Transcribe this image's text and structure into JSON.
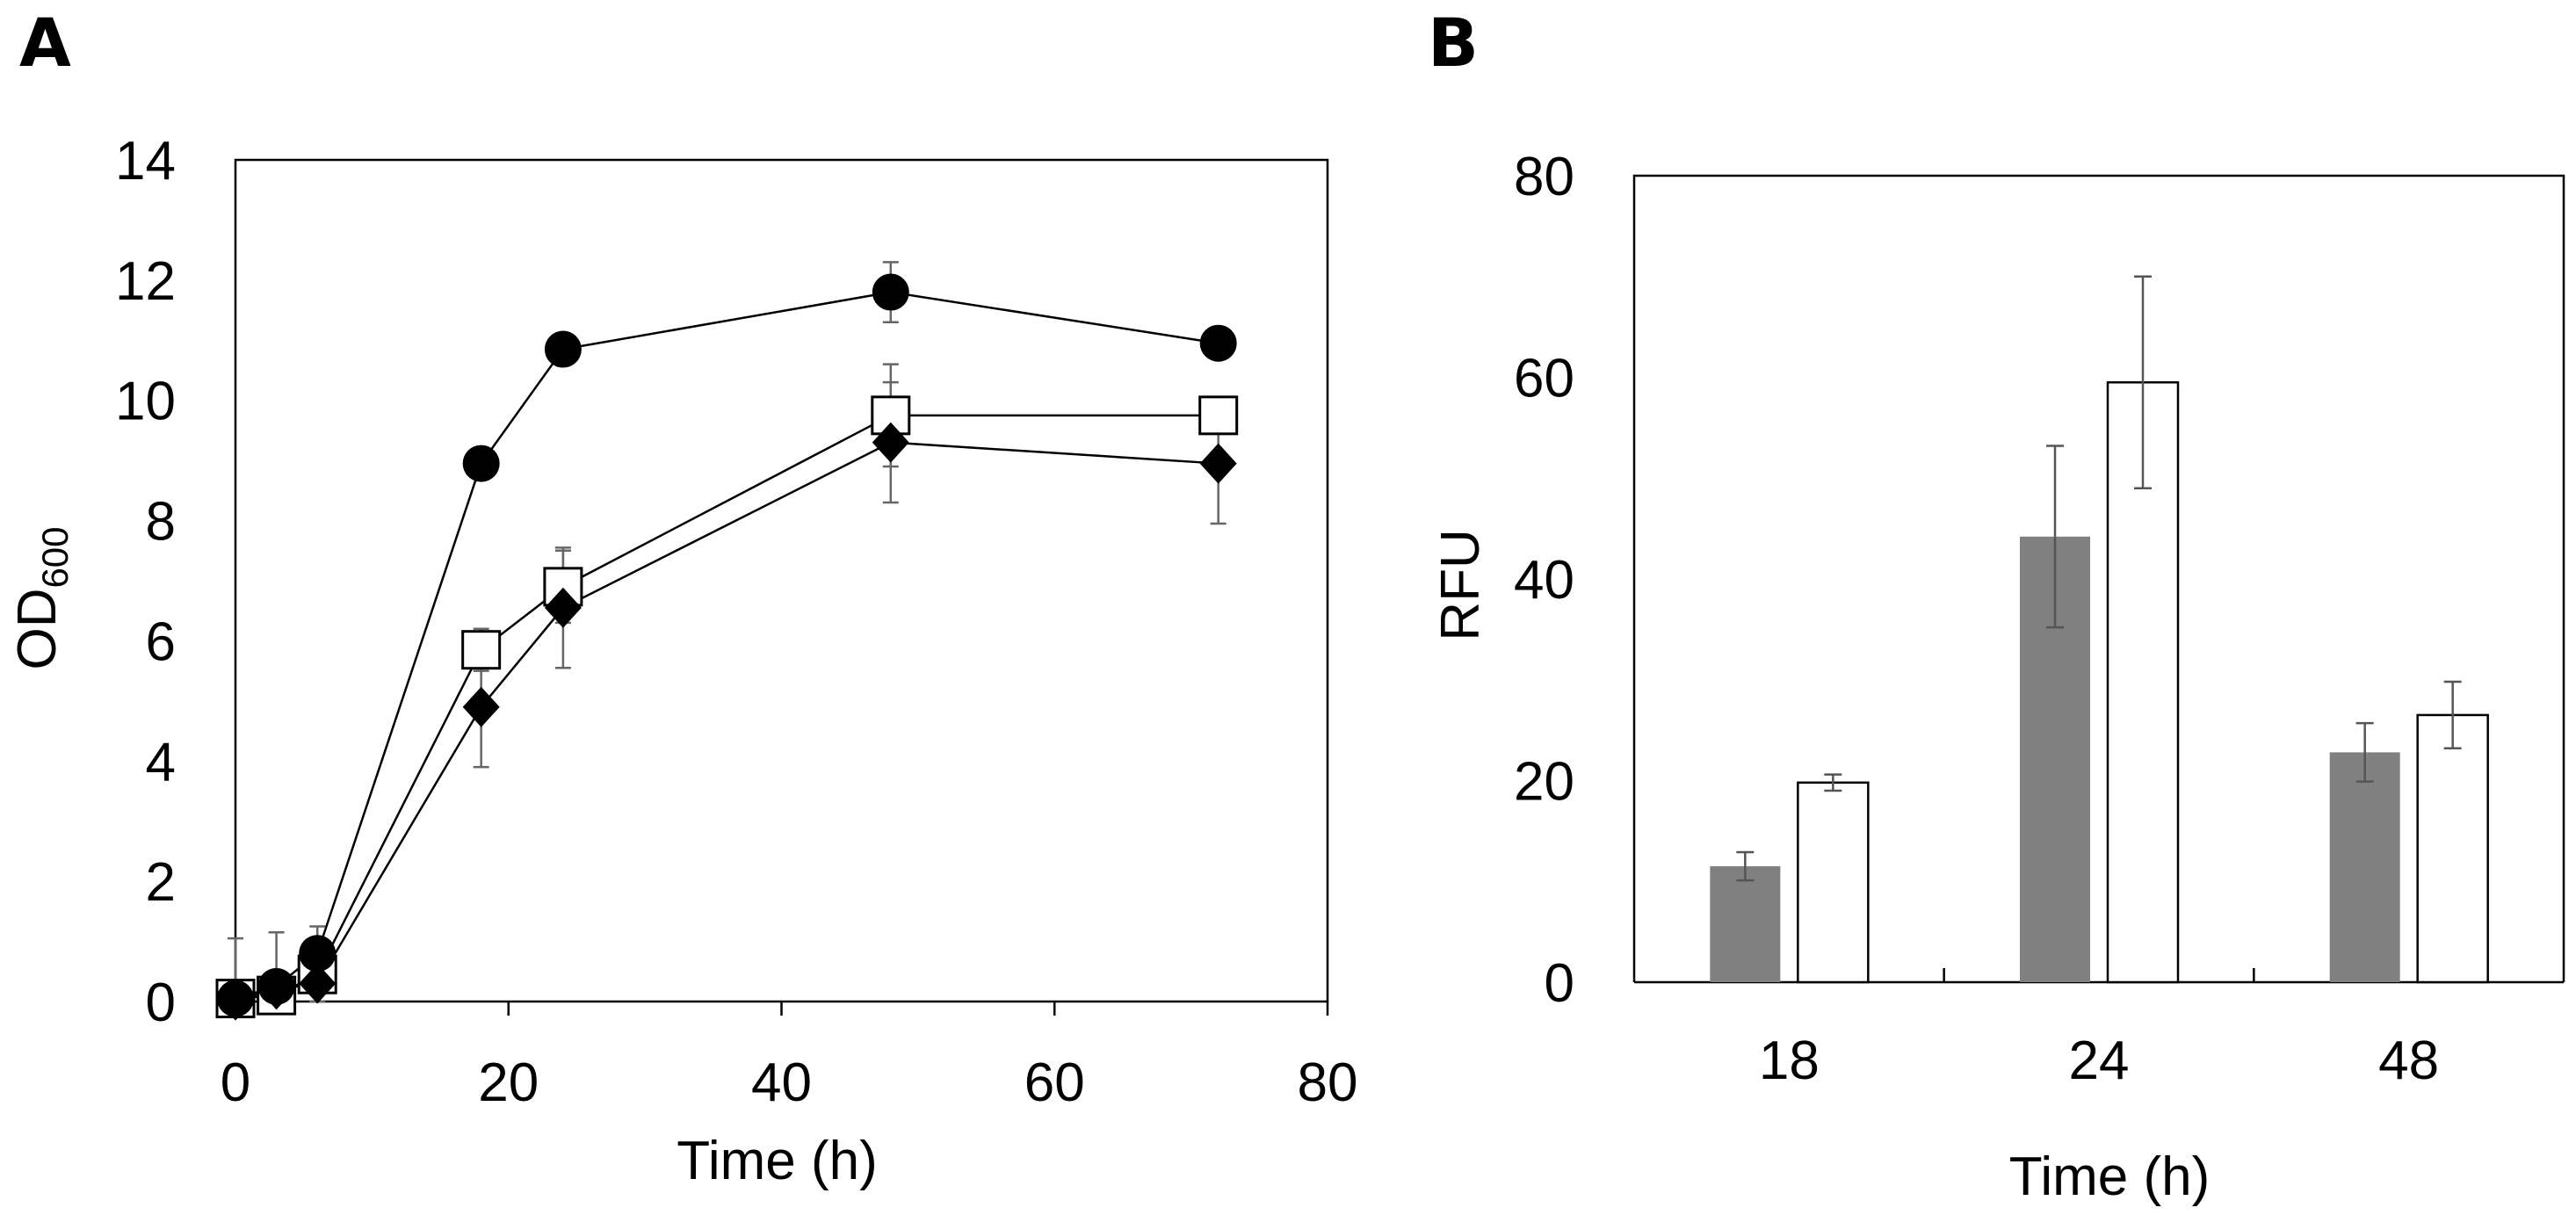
{
  "chart_data": [
    {
      "panel": "A",
      "type": "line",
      "xlabel": "Time (h)",
      "ylabel": "OD",
      "ylabel_subscript": "600",
      "xlim": [
        0,
        80
      ],
      "ylim": [
        0,
        14
      ],
      "xticks": [
        0,
        20,
        40,
        60,
        80
      ],
      "yticks": [
        0,
        2,
        4,
        6,
        8,
        10,
        12,
        14
      ],
      "grid": false,
      "legend": "none",
      "series": [
        {
          "name": "filled circle",
          "marker": "circle-filled",
          "x": [
            0,
            3,
            6,
            18,
            24,
            48,
            72
          ],
          "y": [
            0.05,
            0.25,
            0.8,
            8.95,
            10.85,
            11.8,
            10.95
          ],
          "err": [
            0,
            0,
            0.45,
            0,
            0,
            0.5,
            0
          ]
        },
        {
          "name": "open square",
          "marker": "square-open",
          "x": [
            0,
            3,
            6,
            18,
            24,
            48,
            72
          ],
          "y": [
            0.05,
            0.1,
            0.45,
            5.85,
            6.9,
            9.75,
            9.75
          ],
          "err": [
            1.0,
            1.05,
            0.5,
            0.35,
            0.6,
            0.85,
            0.2
          ]
        },
        {
          "name": "filled diamond",
          "marker": "diamond-filled",
          "x": [
            0,
            3,
            6,
            18,
            24,
            48,
            72
          ],
          "y": [
            0.02,
            0.2,
            0.3,
            4.9,
            6.55,
            9.3,
            8.95
          ],
          "err": [
            0,
            0.3,
            0.3,
            1.0,
            1.0,
            1.0,
            1.0
          ]
        }
      ]
    },
    {
      "panel": "B",
      "type": "bar",
      "xlabel": "Time (h)",
      "ylabel": "RFU",
      "ylim": [
        0,
        80
      ],
      "yticks": [
        0,
        20,
        40,
        60,
        80
      ],
      "grid": false,
      "legend": "none",
      "categories": [
        "18",
        "24",
        "48"
      ],
      "series": [
        {
          "name": "gray",
          "color": "#808080",
          "values": [
            11.5,
            44.2,
            22.8
          ],
          "err": [
            1.4,
            9.0,
            2.9
          ]
        },
        {
          "name": "white",
          "color": "#ffffff",
          "values": [
            19.8,
            59.5,
            26.5
          ],
          "err": [
            0.8,
            10.5,
            3.3
          ]
        }
      ]
    }
  ]
}
